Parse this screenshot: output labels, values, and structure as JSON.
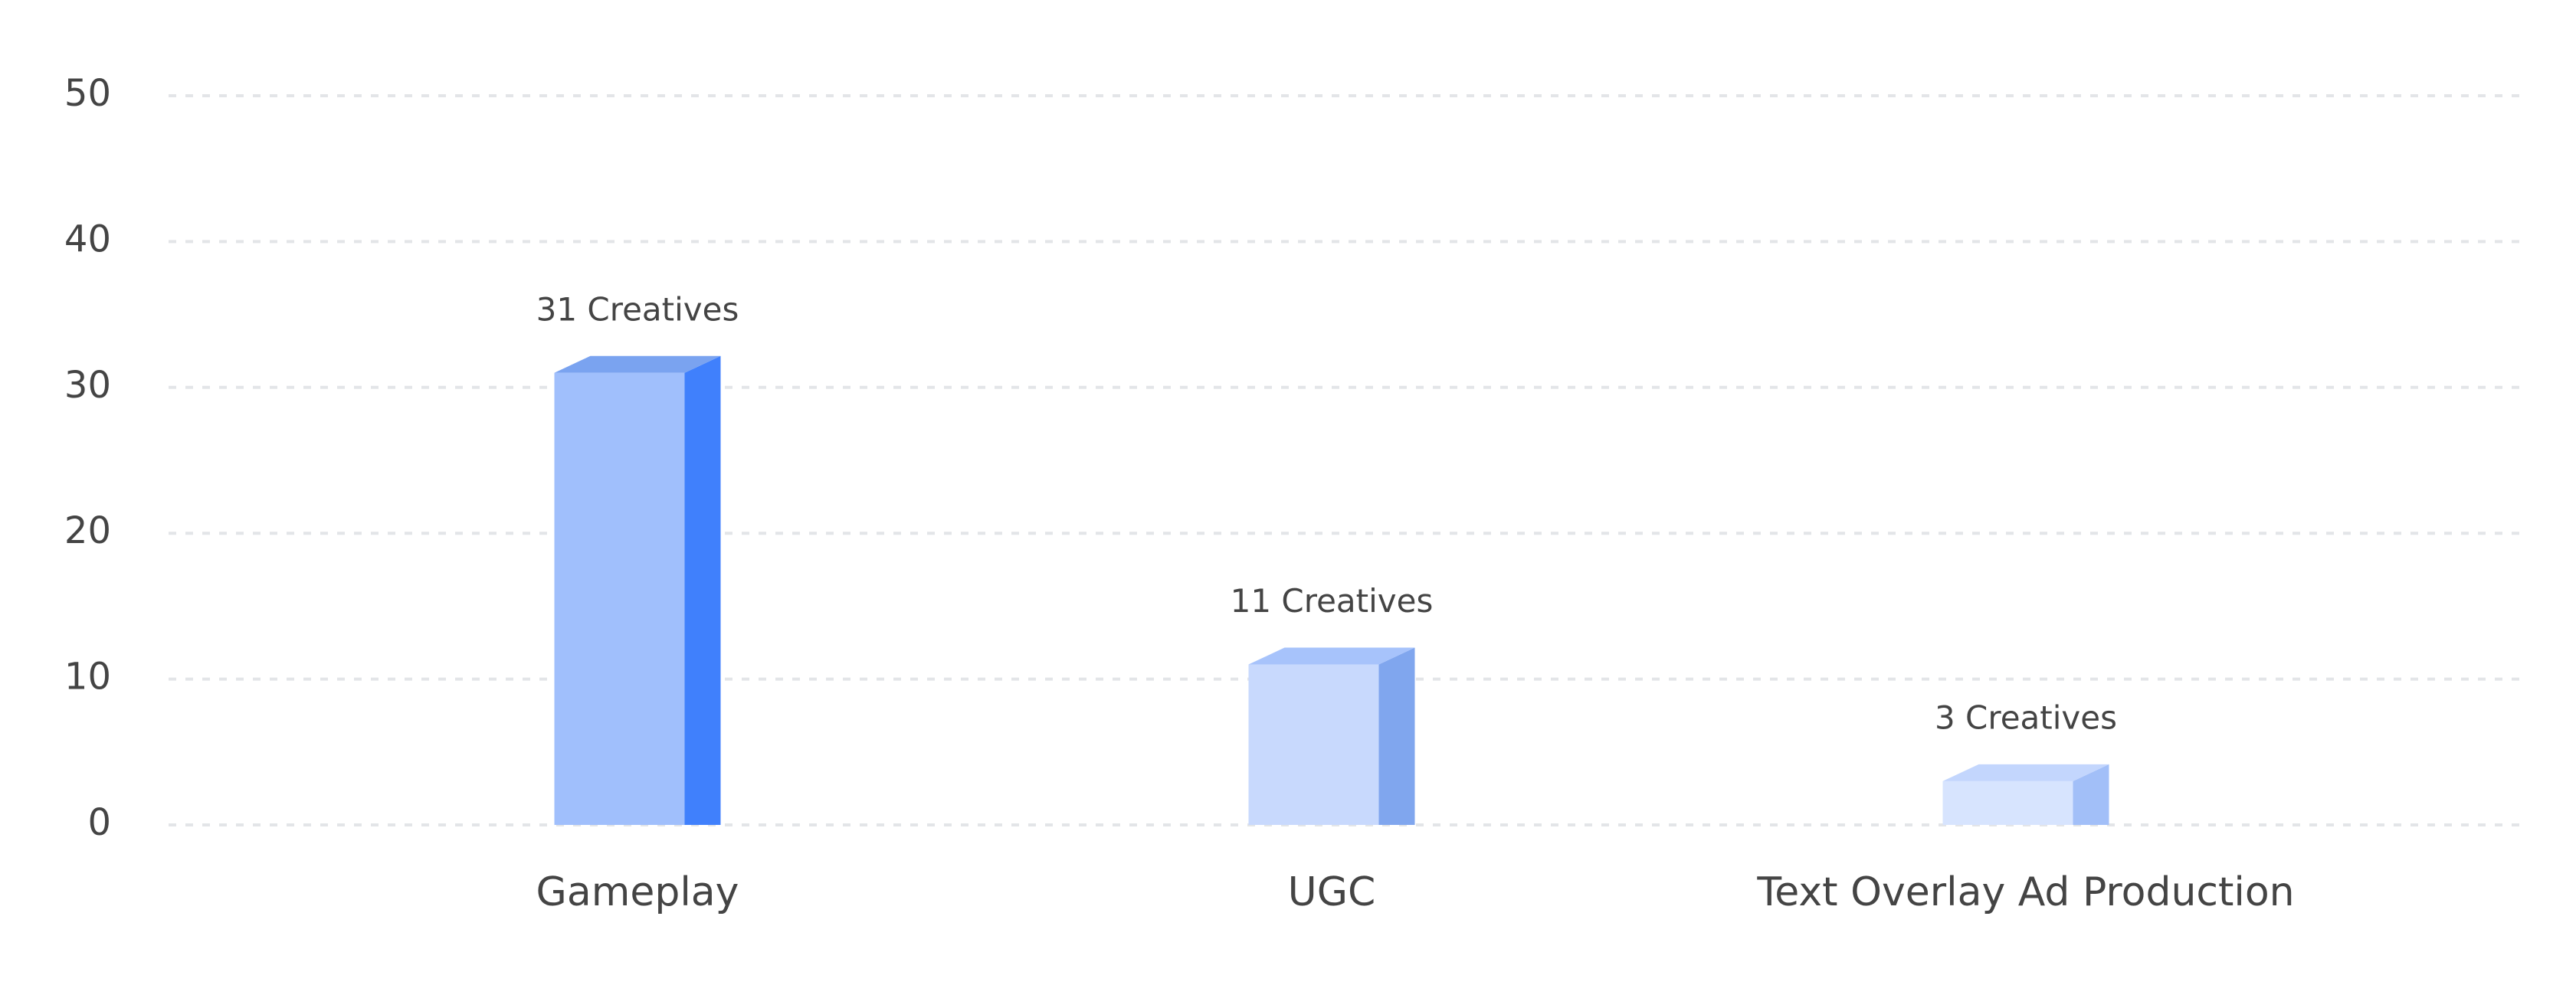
{
  "chart_data": {
    "type": "bar3d",
    "categories": [
      "Gameplay",
      "UGC",
      "Text Overlay Ad Production"
    ],
    "values": [
      31,
      11,
      3
    ],
    "value_labels": [
      "31 Creatives",
      "11 Creatives",
      "3 Creatives"
    ],
    "colors": [
      "#a0bffc",
      "#c8d9fd",
      "#d7e4fe"
    ],
    "side_colors": [
      "#4080fc",
      "#80a6ee",
      "#a2bff8"
    ],
    "top_colors": [
      "#7aa3f0",
      "#a7c3fb",
      "#c3d6fd"
    ],
    "ylim": [
      0,
      50
    ],
    "yticks": [
      0,
      10,
      20,
      30,
      40,
      50
    ],
    "grid": true
  }
}
